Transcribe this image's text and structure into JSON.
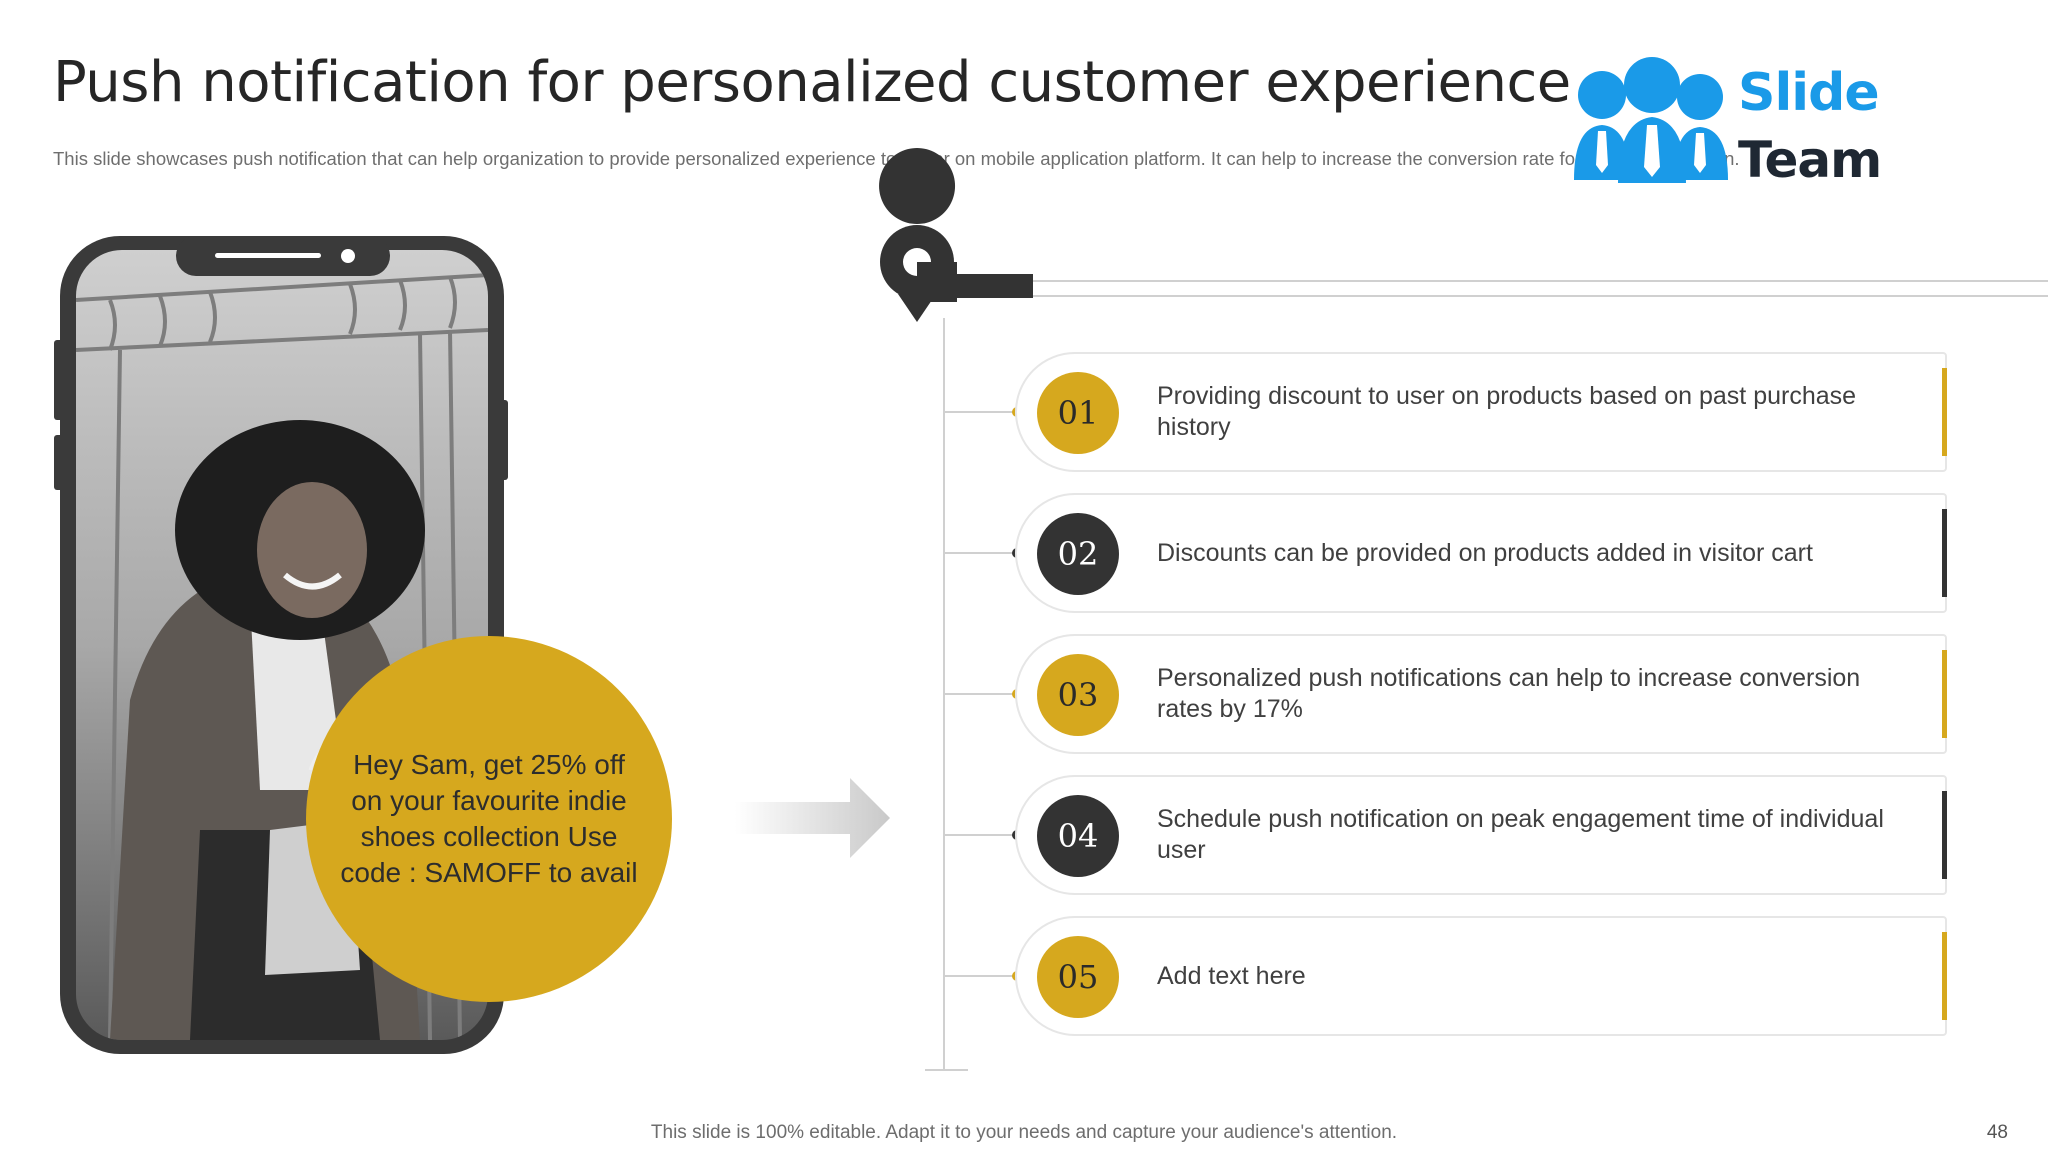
{
  "header": {
    "title": "Push notification for personalized customer experience",
    "subtitle": "This slide showcases push notification that can help organization to provide personalized experience to visitor on mobile application platform. It can help to increase the conversion rate for mobile application."
  },
  "logo": {
    "line1": "Slide",
    "line2": "Team"
  },
  "phone": {
    "message": "Hey Sam, get 25% off on your favourite indie shoes collection Use code : SAMOFF to avail"
  },
  "items": [
    {
      "number": "01",
      "text": "Providing discount to user on products based on past purchase history",
      "style": "gold"
    },
    {
      "number": "02",
      "text": "Discounts can be provided on products added in visitor cart",
      "style": "dark"
    },
    {
      "number": "03",
      "text": "Personalized push notifications can help to increase conversion rates by 17%",
      "style": "gold"
    },
    {
      "number": "04",
      "text": "Schedule push notification on peak engagement time of individual user",
      "style": "dark"
    },
    {
      "number": "05",
      "text": "Add text here",
      "style": "gold"
    }
  ],
  "footer": {
    "note": "This slide is 100% editable. Adapt it to your needs and capture your audience's attention.",
    "page": "48"
  },
  "colors": {
    "gold": "#d6a81e",
    "dark": "#333333",
    "logo_blue": "#1a9ae8"
  }
}
